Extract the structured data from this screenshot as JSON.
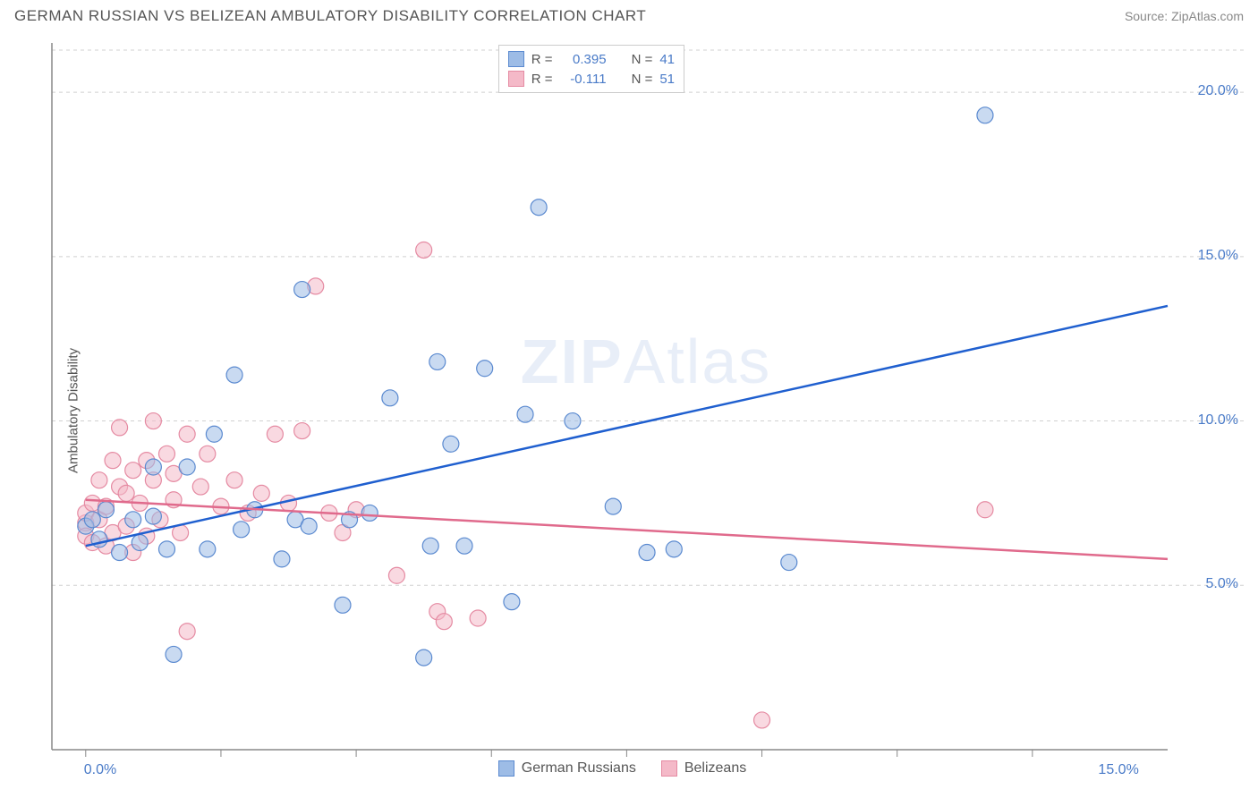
{
  "header": {
    "title": "GERMAN RUSSIAN VS BELIZEAN AMBULATORY DISABILITY CORRELATION CHART",
    "source": "Source: ZipAtlas.com"
  },
  "watermark": {
    "zip": "ZIP",
    "atlas": "Atlas"
  },
  "chart": {
    "type": "scatter",
    "ylabel": "Ambulatory Disability",
    "xlim": [
      -0.5,
      16.0
    ],
    "ylim": [
      0,
      21.5
    ],
    "yticks": [
      5.0,
      10.0,
      15.0,
      20.0
    ],
    "ytick_labels": [
      "5.0%",
      "10.0%",
      "15.0%",
      "20.0%"
    ],
    "xticks_minor": [
      0,
      2,
      4,
      6,
      8,
      10,
      12,
      14
    ],
    "xtick_labels": [
      {
        "v": 0.0,
        "label": "0.0%"
      },
      {
        "v": 15.0,
        "label": "15.0%"
      }
    ],
    "background_color": "#ffffff",
    "grid_color": "#d0d0d0",
    "axis_color": "#888888",
    "label_fontsize": 15,
    "tick_fontsize": 16,
    "tick_color": "#4a7bc8",
    "marker_radius": 9,
    "marker_opacity": 0.55,
    "trend_line_width": 2.5,
    "series": [
      {
        "name": "German Russians",
        "fill": "#9dbce6",
        "stroke": "#5b8ad0",
        "line_color": "#1f5fcf",
        "R": "0.395",
        "N": "41",
        "trend": {
          "x1": 0.0,
          "y1": 6.2,
          "x2": 16.0,
          "y2": 13.5
        },
        "points": [
          [
            0.0,
            6.8
          ],
          [
            0.1,
            7.0
          ],
          [
            0.2,
            6.4
          ],
          [
            0.3,
            7.3
          ],
          [
            0.5,
            6.0
          ],
          [
            0.7,
            7.0
          ],
          [
            0.8,
            6.3
          ],
          [
            1.0,
            8.6
          ],
          [
            1.0,
            7.1
          ],
          [
            1.2,
            6.1
          ],
          [
            1.3,
            2.9
          ],
          [
            1.5,
            8.6
          ],
          [
            1.8,
            6.1
          ],
          [
            1.9,
            9.6
          ],
          [
            2.2,
            11.4
          ],
          [
            2.3,
            6.7
          ],
          [
            2.5,
            7.3
          ],
          [
            2.9,
            5.8
          ],
          [
            3.1,
            7.0
          ],
          [
            3.2,
            14.0
          ],
          [
            3.3,
            6.8
          ],
          [
            3.8,
            4.4
          ],
          [
            3.9,
            7.0
          ],
          [
            4.2,
            7.2
          ],
          [
            4.5,
            10.7
          ],
          [
            5.0,
            2.8
          ],
          [
            5.1,
            6.2
          ],
          [
            5.2,
            11.8
          ],
          [
            5.4,
            9.3
          ],
          [
            5.6,
            6.2
          ],
          [
            5.9,
            11.6
          ],
          [
            6.3,
            4.5
          ],
          [
            6.5,
            10.2
          ],
          [
            6.7,
            16.5
          ],
          [
            7.2,
            10.0
          ],
          [
            7.8,
            7.4
          ],
          [
            8.3,
            6.0
          ],
          [
            8.7,
            6.1
          ],
          [
            10.4,
            5.7
          ],
          [
            13.3,
            19.3
          ]
        ]
      },
      {
        "name": "Belizeans",
        "fill": "#f4b9c8",
        "stroke": "#e58aa2",
        "line_color": "#e06a8c",
        "R": "-0.111",
        "N": "51",
        "trend": {
          "x1": 0.0,
          "y1": 7.6,
          "x2": 16.0,
          "y2": 5.8
        },
        "points": [
          [
            0.0,
            6.9
          ],
          [
            0.0,
            7.2
          ],
          [
            0.0,
            6.5
          ],
          [
            0.1,
            7.5
          ],
          [
            0.1,
            6.3
          ],
          [
            0.2,
            7.0
          ],
          [
            0.2,
            8.2
          ],
          [
            0.3,
            6.2
          ],
          [
            0.3,
            7.4
          ],
          [
            0.4,
            8.8
          ],
          [
            0.4,
            6.6
          ],
          [
            0.5,
            8.0
          ],
          [
            0.5,
            9.8
          ],
          [
            0.6,
            6.8
          ],
          [
            0.6,
            7.8
          ],
          [
            0.7,
            8.5
          ],
          [
            0.7,
            6.0
          ],
          [
            0.8,
            7.5
          ],
          [
            0.9,
            8.8
          ],
          [
            0.9,
            6.5
          ],
          [
            1.0,
            8.2
          ],
          [
            1.0,
            10.0
          ],
          [
            1.1,
            7.0
          ],
          [
            1.2,
            9.0
          ],
          [
            1.3,
            7.6
          ],
          [
            1.3,
            8.4
          ],
          [
            1.4,
            6.6
          ],
          [
            1.5,
            9.6
          ],
          [
            1.5,
            3.6
          ],
          [
            1.7,
            8.0
          ],
          [
            1.8,
            9.0
          ],
          [
            2.0,
            7.4
          ],
          [
            2.2,
            8.2
          ],
          [
            2.4,
            7.2
          ],
          [
            2.6,
            7.8
          ],
          [
            2.8,
            9.6
          ],
          [
            3.0,
            7.5
          ],
          [
            3.2,
            9.7
          ],
          [
            3.4,
            14.1
          ],
          [
            3.6,
            7.2
          ],
          [
            3.8,
            6.6
          ],
          [
            4.0,
            7.3
          ],
          [
            4.6,
            5.3
          ],
          [
            5.0,
            15.2
          ],
          [
            5.2,
            4.2
          ],
          [
            5.3,
            3.9
          ],
          [
            5.8,
            4.0
          ],
          [
            10.0,
            0.9
          ],
          [
            13.3,
            7.3
          ]
        ]
      }
    ]
  },
  "legend_top": {
    "r_label": "R =",
    "n_label": "N ="
  },
  "legend_bottom": {
    "items": [
      "German Russians",
      "Belizeans"
    ]
  }
}
